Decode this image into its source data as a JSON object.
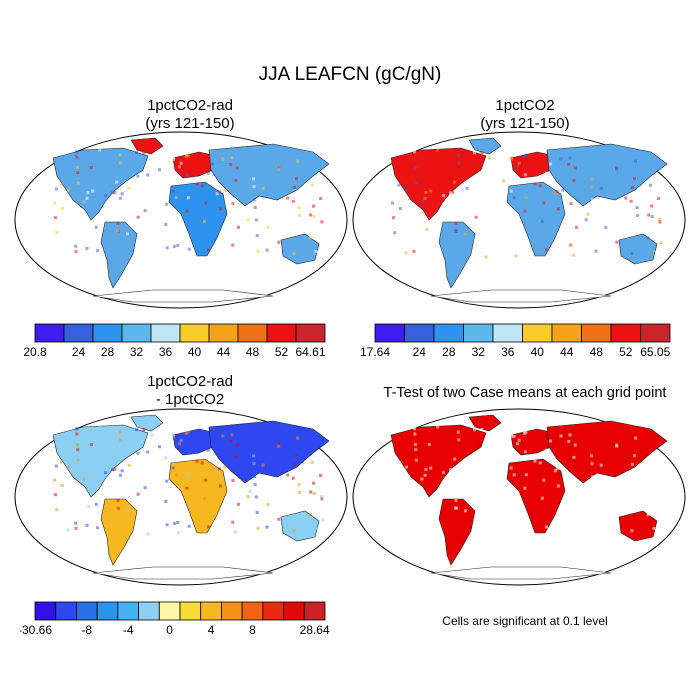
{
  "title": "JJA LEAFCN (gC/gN)",
  "panels": [
    {
      "id": "a",
      "title_line1": "1pctCO2-rad",
      "title_line2": "(yrs 121-150)"
    },
    {
      "id": "b",
      "title_line1": "1pctCO2",
      "title_line2": "(yrs 121-150)"
    },
    {
      "id": "c",
      "title_line1": "1pctCO2-rad",
      "title_line2": "- 1pctCO2"
    },
    {
      "id": "d",
      "title_line1": "T-Test of two Case means at each grid point",
      "title_line2": ""
    }
  ],
  "colorbars": [
    {
      "id": "cb-a",
      "colors": [
        "#3f1cf0",
        "#3a5fdc",
        "#2e93ee",
        "#5cb8ea",
        "#bfe6f5",
        "#f5cc2a",
        "#f5a21a",
        "#f07218",
        "#ea1212",
        "#c8262b"
      ],
      "labels": [
        "20.8",
        "24",
        "28",
        "32",
        "36",
        "40",
        "44",
        "48",
        "52",
        "64.61"
      ]
    },
    {
      "id": "cb-b",
      "colors": [
        "#3f1cf0",
        "#3a5fdc",
        "#2e93ee",
        "#5cb8ea",
        "#bfe6f5",
        "#f5cc2a",
        "#f5a21a",
        "#f07218",
        "#ea1212",
        "#c8262b"
      ],
      "labels": [
        "17.64",
        "24",
        "28",
        "32",
        "36",
        "40",
        "44",
        "48",
        "52",
        "65.05"
      ]
    },
    {
      "id": "cb-c",
      "colors": [
        "#3210e8",
        "#2d48f0",
        "#2a70e4",
        "#2a93ec",
        "#46b2ef",
        "#8bd0f2",
        "#fff6a6",
        "#f8dc35",
        "#f5b820",
        "#f58f18",
        "#f06414",
        "#ea2a10",
        "#e00a0a",
        "#cc2226"
      ],
      "labels": [
        "-30.66",
        "",
        "-8",
        "",
        "-4",
        "",
        "0",
        "",
        "4",
        "",
        "8",
        "",
        "",
        "28.64"
      ]
    }
  ],
  "significance_note": "Cells are significant at 0.1 level",
  "colors": {
    "land_cold": "#5aa8e8",
    "land_warm": "#e62a10",
    "significant": "#e60000",
    "ocean": "#ffffff"
  }
}
